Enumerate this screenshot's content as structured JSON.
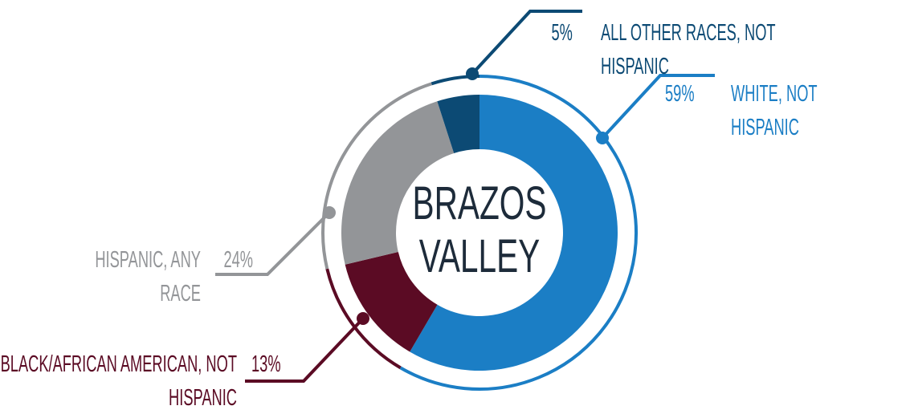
{
  "chart_data": {
    "type": "pie",
    "donut": true,
    "center_label": [
      "BRAZOS",
      "VALLEY"
    ],
    "categories": [
      "WHITE, NOT HISPANIC",
      "BLACK/AFRICAN AMERICAN, NOT HISPANIC",
      "HISPANIC, ANY RACE",
      "ALL OTHER RACES, NOT HISPANIC"
    ],
    "values": [
      59,
      13,
      24,
      5
    ],
    "value_labels": [
      "59%",
      "13%",
      "24%",
      "5%"
    ],
    "colors": [
      "#1b7ec5",
      "#5b0b24",
      "#939598",
      "#0c4a74"
    ]
  }
}
